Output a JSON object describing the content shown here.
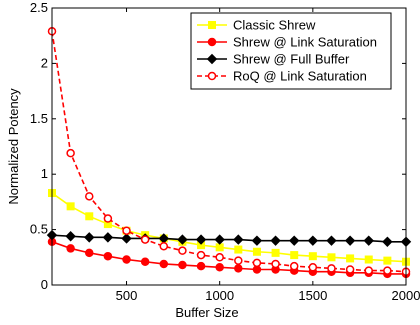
{
  "chart_data": {
    "type": "line",
    "xlabel": "Buffer Size",
    "ylabel": "Normalized Potency",
    "xlim": [
      100,
      2000
    ],
    "ylim": [
      0,
      2.5
    ],
    "xticks": [
      500,
      1000,
      1500,
      2000
    ],
    "yticks": [
      0,
      0.5,
      1,
      1.5,
      2,
      2.5
    ],
    "xtick_labels": [
      "500",
      "1000",
      "1500",
      "2000"
    ],
    "ytick_labels": [
      "0",
      "0.5",
      "1",
      "1.5",
      "2",
      "2.5"
    ],
    "legend_position": "top-right",
    "x": [
      100,
      200,
      300,
      400,
      500,
      600,
      700,
      800,
      900,
      1000,
      1100,
      1200,
      1300,
      1400,
      1500,
      1600,
      1700,
      1800,
      1900,
      2000
    ],
    "series": [
      {
        "name": "Classic Shrew",
        "color": "#ffff00",
        "marker": "square",
        "filled": true,
        "dashed": false,
        "values": [
          0.83,
          0.71,
          0.62,
          0.55,
          0.49,
          0.45,
          0.42,
          0.39,
          0.36,
          0.34,
          0.32,
          0.3,
          0.29,
          0.27,
          0.26,
          0.25,
          0.24,
          0.23,
          0.22,
          0.21
        ]
      },
      {
        "name": "Shrew @ Link Saturation",
        "color": "#ff0000",
        "marker": "circle",
        "filled": true,
        "dashed": false,
        "values": [
          0.39,
          0.33,
          0.29,
          0.26,
          0.23,
          0.21,
          0.19,
          0.18,
          0.17,
          0.16,
          0.15,
          0.14,
          0.14,
          0.13,
          0.12,
          0.12,
          0.11,
          0.11,
          0.1,
          0.1
        ]
      },
      {
        "name": "Shrew @ Full Buffer",
        "color": "#000000",
        "marker": "diamond",
        "filled": true,
        "dashed": false,
        "values": [
          0.45,
          0.44,
          0.43,
          0.43,
          0.42,
          0.42,
          0.42,
          0.41,
          0.41,
          0.41,
          0.41,
          0.4,
          0.4,
          0.4,
          0.4,
          0.4,
          0.4,
          0.4,
          0.39,
          0.39
        ]
      },
      {
        "name": "RoQ @ Link Saturation",
        "color": "#ff0000",
        "marker": "circle",
        "filled": false,
        "dashed": true,
        "values": [
          2.29,
          1.19,
          0.8,
          0.6,
          0.49,
          0.41,
          0.35,
          0.31,
          0.27,
          0.25,
          0.22,
          0.2,
          0.19,
          0.17,
          0.16,
          0.15,
          0.14,
          0.13,
          0.13,
          0.12
        ]
      }
    ]
  }
}
